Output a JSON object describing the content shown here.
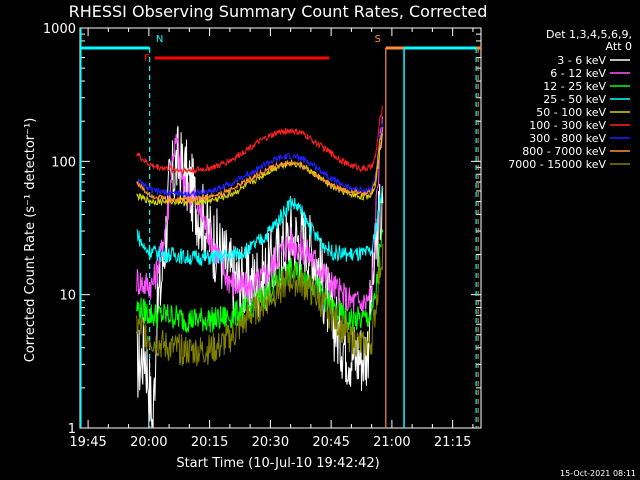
{
  "chart_data": {
    "type": "line",
    "title": "RHESSI Observing Summary Count Rates, Corrected",
    "xlabel": "Start Time (10-Jul-10 19:42:42)",
    "ylabel": "Corrected Count Rate (s⁻¹ detector⁻¹)",
    "yscale": "log",
    "ylim": [
      1,
      1000
    ],
    "xlim_minutes_from_1945": [
      -2,
      97
    ],
    "x_ticks": [
      {
        "label": "19:45",
        "t": 0
      },
      {
        "label": "20:00",
        "t": 15
      },
      {
        "label": "20:15",
        "t": 30
      },
      {
        "label": "20:30",
        "t": 45
      },
      {
        "label": "20:45",
        "t": 60
      },
      {
        "label": "21:00",
        "t": 75
      },
      {
        "label": "21:15",
        "t": 90
      }
    ],
    "y_ticks": [
      {
        "label": "1",
        "v": 1
      },
      {
        "label": "10",
        "v": 10
      },
      {
        "label": "100",
        "v": 100
      },
      {
        "label": "1000",
        "v": 1000
      }
    ],
    "legend_header": [
      "Det 1,3,4,5,6,9,",
      "Att 0"
    ],
    "legend_position": "right",
    "series": [
      {
        "name": "3 - 6 keV",
        "color": "#ffffff",
        "t": [
          12,
          13,
          14,
          15,
          16,
          17,
          18,
          19,
          20,
          22,
          24,
          27,
          30,
          33,
          36,
          40,
          44,
          47,
          50,
          53,
          56,
          58,
          60,
          62,
          64,
          66,
          68,
          69,
          70,
          71,
          71.5,
          72,
          72.8
        ],
        "v": [
          3,
          3.2,
          4,
          2.2,
          1,
          8,
          12,
          25,
          60,
          100,
          80,
          45,
          28,
          20,
          13,
          12,
          14,
          20,
          27,
          25,
          20,
          12,
          7,
          5,
          4,
          3.5,
          3.5,
          4,
          10,
          20,
          30,
          40,
          40
        ]
      },
      {
        "name": "6 - 12 keV",
        "color": "#ff55ff",
        "t": [
          12,
          14,
          16,
          18,
          20,
          21,
          22,
          23,
          24,
          26,
          28,
          30,
          32,
          34,
          36,
          40,
          44,
          47,
          50,
          53,
          56,
          60,
          64,
          68,
          70,
          71,
          72,
          72.8
        ],
        "v": [
          13,
          12,
          12,
          20,
          50,
          120,
          140,
          80,
          60,
          55,
          40,
          28,
          20,
          14,
          12,
          11,
          14,
          20,
          25,
          22,
          18,
          12,
          9,
          8.5,
          10,
          40,
          120,
          200
        ]
      },
      {
        "name": "12 - 25 keV",
        "color": "#00ff00",
        "t": [
          12,
          16,
          20,
          24,
          28,
          32,
          36,
          40,
          44,
          47,
          50,
          53,
          56,
          60,
          64,
          68,
          70,
          71,
          72,
          72.8
        ],
        "v": [
          8,
          7,
          7,
          6.5,
          6.5,
          6.5,
          7,
          8,
          10,
          13,
          15,
          14,
          12,
          8,
          6.5,
          6.5,
          7,
          10,
          20,
          28
        ]
      },
      {
        "name": "25 - 50 keV",
        "color": "#00ffff",
        "t": [
          12,
          13,
          14,
          16,
          18,
          20,
          22,
          24,
          28,
          32,
          36,
          40,
          44,
          46,
          48,
          50,
          52,
          54,
          56,
          58,
          60,
          64,
          68,
          70,
          71,
          72,
          72.8
        ],
        "v": [
          30,
          25,
          22,
          21,
          20,
          20,
          20,
          19,
          19,
          19,
          20,
          22,
          28,
          33,
          40,
          50,
          45,
          35,
          28,
          24,
          21,
          20,
          20,
          21,
          30,
          50,
          60
        ]
      },
      {
        "name": "50 - 100 keV",
        "color": "#d6d600",
        "t": [
          12,
          14,
          16,
          20,
          24,
          28,
          32,
          36,
          40,
          44,
          47,
          50,
          53,
          56,
          60,
          64,
          68,
          70,
          71,
          72,
          72.8
        ],
        "v": [
          55,
          52,
          50,
          50,
          50,
          50,
          52,
          58,
          68,
          82,
          92,
          98,
          92,
          80,
          65,
          57,
          54,
          56,
          70,
          120,
          160
        ]
      },
      {
        "name": "100 - 300 keV",
        "color": "#ff2020",
        "t": [
          12,
          14,
          16,
          20,
          24,
          28,
          32,
          36,
          40,
          44,
          47,
          50,
          53,
          56,
          60,
          64,
          68,
          70,
          71,
          72,
          72.8
        ],
        "v": [
          115,
          100,
          92,
          88,
          85,
          87,
          92,
          105,
          128,
          150,
          165,
          170,
          162,
          140,
          115,
          95,
          88,
          90,
          110,
          200,
          260
        ]
      },
      {
        "name": "300 - 800 keV",
        "color": "#2020ff",
        "t": [
          12,
          14,
          16,
          20,
          24,
          28,
          32,
          36,
          40,
          44,
          47,
          50,
          53,
          56,
          60,
          64,
          68,
          70,
          71,
          72,
          72.8
        ],
        "v": [
          72,
          65,
          60,
          58,
          57,
          58,
          62,
          70,
          82,
          96,
          105,
          110,
          104,
          92,
          75,
          64,
          60,
          62,
          80,
          150,
          190
        ]
      },
      {
        "name": "800 - 7000 keV",
        "color": "#ff9030",
        "t": [
          12,
          14,
          16,
          20,
          24,
          28,
          32,
          36,
          40,
          44,
          47,
          50,
          53,
          56,
          60,
          64,
          68,
          70,
          71,
          72,
          72.8
        ],
        "v": [
          70,
          60,
          55,
          52,
          52,
          53,
          56,
          63,
          74,
          86,
          94,
          98,
          92,
          80,
          67,
          60,
          57,
          58,
          75,
          140,
          180
        ]
      },
      {
        "name": "7000 - 15000 keV",
        "color": "#808000",
        "t": [
          12,
          16,
          20,
          24,
          28,
          32,
          36,
          40,
          44,
          47,
          50,
          53,
          56,
          60,
          64,
          68,
          70,
          71,
          72,
          72.8
        ],
        "v": [
          6,
          4.5,
          4,
          3.8,
          3.8,
          4,
          5,
          7,
          9,
          11,
          13,
          12,
          10,
          7,
          5,
          4,
          4.5,
          8,
          15,
          22
        ]
      }
    ],
    "flags": [
      {
        "label": "N",
        "color": "#00ffff",
        "t_start": -2,
        "t_end": 15.2,
        "level": "top",
        "boundary_t": 15.2,
        "boundary_dashed": true
      },
      {
        "label": "F",
        "color": "#ff0000",
        "t_start": 16.5,
        "t_end": 59.5,
        "level": "second"
      },
      {
        "label": "S",
        "color": "#ff9030",
        "t_start": 73.5,
        "t_end": 97,
        "level": "top",
        "boundary_t": 73.5,
        "boundary_dashed": false
      }
    ],
    "cyan_segments": [
      {
        "t_start": 78,
        "t_end": 95.8,
        "level": "third",
        "boundary_left": 78,
        "boundary_right_dashed": 95.8
      }
    ],
    "left_cyan_line_t": -1.8,
    "grid": false
  },
  "timestamp": "15-Oct-2021 08:11"
}
